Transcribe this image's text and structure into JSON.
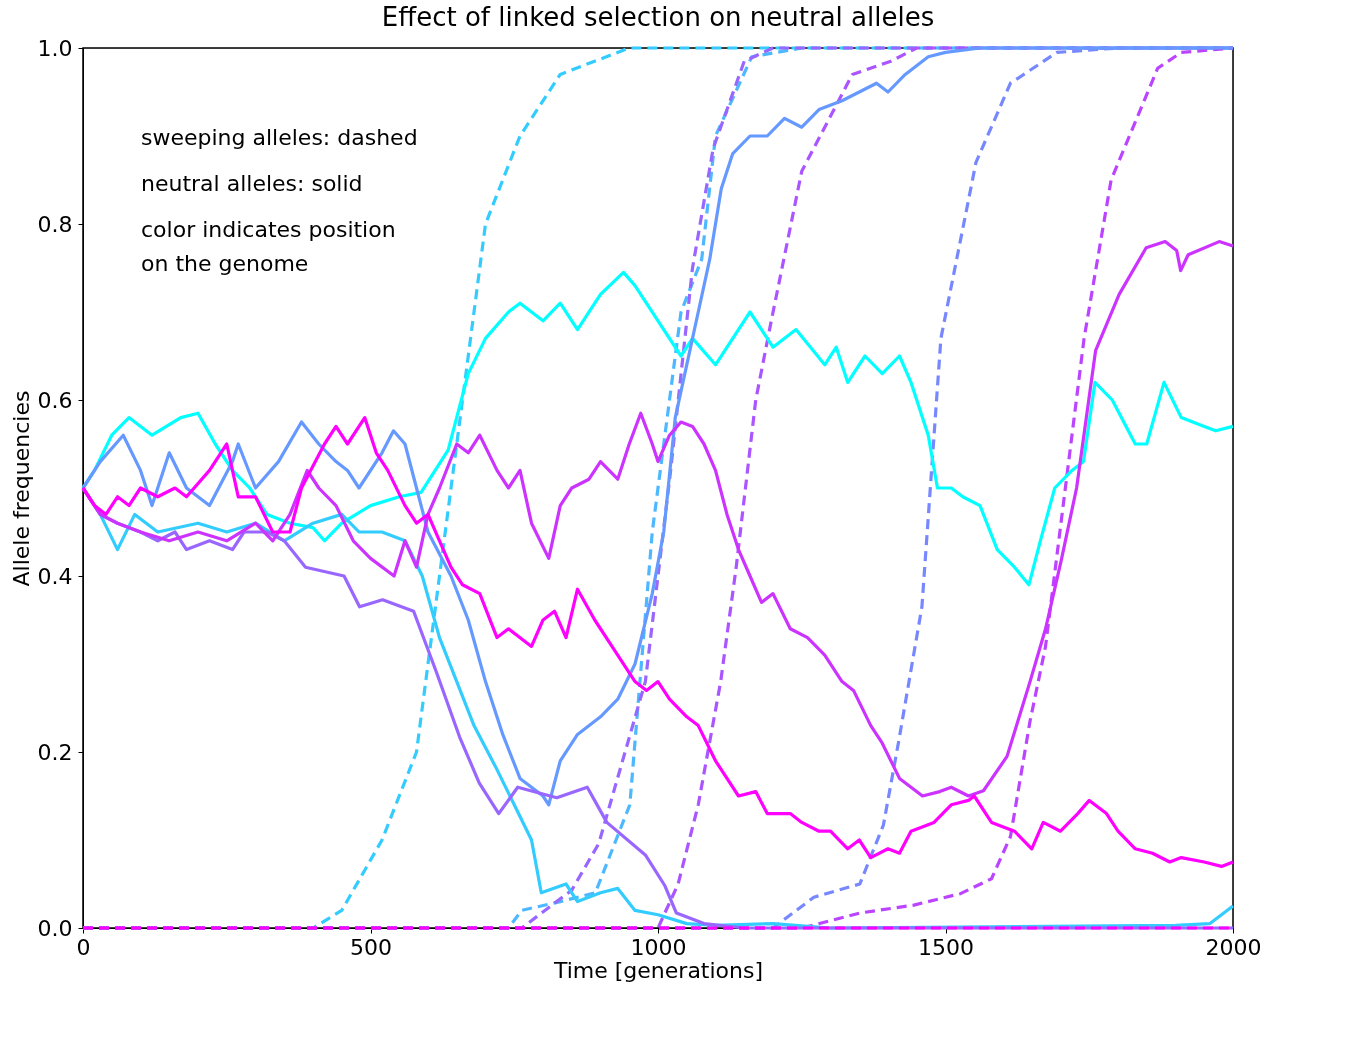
{
  "chart_data": {
    "type": "line",
    "title": "Effect of linked selection on neutral alleles",
    "xlabel": "Time [generations]",
    "ylabel": "Allele frequencies",
    "xlim": [
      0,
      2000
    ],
    "ylim": [
      0,
      1
    ],
    "xticks": [
      0,
      500,
      1000,
      1500,
      2000
    ],
    "yticks": [
      {
        "value": 0,
        "label": "0.0"
      },
      {
        "value": 0.2,
        "label": "0.2"
      },
      {
        "value": 0.4,
        "label": "0.4"
      },
      {
        "value": 0.6,
        "label": "0.6"
      },
      {
        "value": 0.8,
        "label": "0.8"
      },
      {
        "value": 1,
        "label": "1.0"
      }
    ],
    "grid": false,
    "marker": "none",
    "annotations": [
      "sweeping alleles: dashed",
      "neutral alleles: solid",
      "color indicates position\non the genome"
    ],
    "series": [
      {
        "color": "#33ccff",
        "line_style": "dashed",
        "x": [
          0,
          400,
          450,
          520,
          580,
          620,
          660,
          700,
          760,
          830,
          950,
          2000
        ],
        "values": [
          0,
          0,
          0.02,
          0.1,
          0.2,
          0.4,
          0.6,
          0.8,
          0.9,
          0.97,
          1,
          1
        ]
      },
      {
        "color": "#4db8ff",
        "line_style": "dashed",
        "x": [
          0,
          740,
          763,
          830,
          891,
          951,
          990,
          1040,
          1076,
          1100,
          1163,
          1250,
          2000
        ],
        "values": [
          0,
          0,
          0.02,
          0.03,
          0.04,
          0.14,
          0.45,
          0.7,
          0.76,
          0.9,
          0.99,
          1,
          1
        ]
      },
      {
        "color": "#9966ff",
        "line_style": "dashed",
        "x": [
          0,
          763,
          850,
          897,
          978,
          1000,
          1022,
          1060,
          1096,
          1150,
          1200,
          2000
        ],
        "values": [
          0,
          0,
          0.043,
          0.096,
          0.28,
          0.4,
          0.52,
          0.75,
          0.886,
          0.985,
          1,
          1
        ]
      },
      {
        "color": "#aa55ff",
        "line_style": "dashed",
        "x": [
          0,
          1000,
          1035,
          1070,
          1109,
          1136,
          1170,
          1197,
          1250,
          1338,
          1405,
          1450,
          2000
        ],
        "values": [
          0,
          0,
          0.05,
          0.14,
          0.28,
          0.41,
          0.6,
          0.69,
          0.86,
          0.97,
          0.985,
          1,
          1
        ]
      },
      {
        "color": "#7788ff",
        "line_style": "dashed",
        "x": [
          0,
          1200,
          1271,
          1351,
          1392,
          1418,
          1459,
          1492,
          1553,
          1613,
          1694,
          1800,
          2000
        ],
        "values": [
          0,
          0,
          0.035,
          0.05,
          0.117,
          0.21,
          0.365,
          0.67,
          0.87,
          0.96,
          0.995,
          1,
          1
        ]
      },
      {
        "color": "#bb44ff",
        "line_style": "dashed",
        "x": [
          0,
          1250,
          1351,
          1445,
          1526,
          1580,
          1613,
          1647,
          1674,
          1741,
          1788,
          1869,
          1910,
          2000
        ],
        "values": [
          0,
          0,
          0.017,
          0.026,
          0.039,
          0.056,
          0.104,
          0.235,
          0.32,
          0.67,
          0.85,
          0.977,
          0.995,
          1
        ]
      },
      {
        "color": "#00ffff",
        "line_style": "solid",
        "x": [
          0,
          20,
          50,
          80,
          120,
          170,
          200,
          230,
          260,
          290,
          320,
          360,
          400,
          420,
          450,
          500,
          550,
          588,
          635,
          670,
          700,
          740,
          760,
          800,
          830,
          860,
          900,
          940,
          960,
          1000,
          1040,
          1060,
          1100,
          1140,
          1160,
          1200,
          1240,
          1290,
          1310,
          1330,
          1360,
          1390,
          1420,
          1440,
          1470,
          1486,
          1510,
          1530,
          1560,
          1590,
          1620,
          1645,
          1665,
          1690,
          1720,
          1740,
          1760,
          1790,
          1830,
          1850,
          1880,
          1910,
          1950,
          1970,
          2000
        ],
        "values": [
          0.5,
          0.52,
          0.56,
          0.58,
          0.56,
          0.58,
          0.585,
          0.55,
          0.52,
          0.5,
          0.47,
          0.46,
          0.455,
          0.44,
          0.46,
          0.48,
          0.49,
          0.495,
          0.543,
          0.63,
          0.67,
          0.7,
          0.71,
          0.69,
          0.71,
          0.68,
          0.72,
          0.745,
          0.73,
          0.69,
          0.65,
          0.67,
          0.64,
          0.68,
          0.7,
          0.66,
          0.68,
          0.64,
          0.66,
          0.62,
          0.65,
          0.63,
          0.65,
          0.62,
          0.56,
          0.5,
          0.5,
          0.49,
          0.48,
          0.43,
          0.41,
          0.39,
          0.44,
          0.5,
          0.52,
          0.53,
          0.62,
          0.6,
          0.55,
          0.55,
          0.62,
          0.58,
          0.57,
          0.565,
          0.57
        ]
      },
      {
        "color": "#33ccff",
        "line_style": "solid",
        "x": [
          0,
          30,
          60,
          90,
          130,
          200,
          250,
          300,
          350,
          400,
          450,
          480,
          520,
          560,
          590,
          620,
          650,
          680,
          720,
          750,
          780,
          797,
          840,
          860,
          900,
          930,
          960,
          1000,
          1050,
          1100,
          1200,
          1300,
          1900,
          1960,
          2000
        ],
        "values": [
          0.5,
          0.47,
          0.43,
          0.47,
          0.45,
          0.46,
          0.45,
          0.46,
          0.44,
          0.46,
          0.47,
          0.45,
          0.45,
          0.44,
          0.4,
          0.33,
          0.28,
          0.23,
          0.18,
          0.14,
          0.1,
          0.04,
          0.05,
          0.03,
          0.04,
          0.045,
          0.02,
          0.015,
          0.005,
          0.003,
          0.005,
          0,
          0.003,
          0.005,
          0.025
        ]
      },
      {
        "color": "#6699ff",
        "line_style": "solid",
        "x": [
          0,
          30,
          70,
          100,
          120,
          150,
          180,
          220,
          260,
          270,
          300,
          340,
          380,
          410,
          440,
          460,
          480,
          520,
          540,
          560,
          580,
          600,
          640,
          670,
          700,
          730,
          760,
          780,
          800,
          810,
          830,
          860,
          900,
          930,
          960,
          990,
          1010,
          1030,
          1050,
          1070,
          1090,
          1110,
          1130,
          1160,
          1190,
          1220,
          1250,
          1280,
          1320,
          1350,
          1380,
          1400,
          1430,
          1470,
          1500,
          1560,
          2000
        ],
        "values": [
          0.5,
          0.53,
          0.56,
          0.52,
          0.48,
          0.54,
          0.5,
          0.48,
          0.53,
          0.55,
          0.5,
          0.53,
          0.575,
          0.55,
          0.53,
          0.52,
          0.5,
          0.54,
          0.565,
          0.55,
          0.5,
          0.45,
          0.4,
          0.35,
          0.28,
          0.22,
          0.17,
          0.16,
          0.15,
          0.14,
          0.19,
          0.22,
          0.24,
          0.26,
          0.3,
          0.38,
          0.45,
          0.58,
          0.64,
          0.7,
          0.76,
          0.84,
          0.88,
          0.9,
          0.9,
          0.92,
          0.91,
          0.93,
          0.94,
          0.95,
          0.96,
          0.95,
          0.97,
          0.99,
          0.995,
          1,
          1
        ]
      },
      {
        "color": "#9966ff",
        "line_style": "solid",
        "x": [
          0,
          30,
          60,
          100,
          130,
          160,
          180,
          220,
          260,
          280,
          320,
          350,
          387,
          454,
          481,
          521,
          575,
          615,
          655,
          689,
          723,
          756,
          824,
          877,
          911,
          978,
          1012,
          1032,
          1080,
          1150,
          2000
        ],
        "values": [
          0.5,
          0.47,
          0.46,
          0.45,
          0.44,
          0.45,
          0.43,
          0.44,
          0.43,
          0.45,
          0.45,
          0.44,
          0.41,
          0.4,
          0.365,
          0.373,
          0.36,
          0.29,
          0.217,
          0.165,
          0.13,
          0.16,
          0.148,
          0.16,
          0.12,
          0.083,
          0.048,
          0.017,
          0.005,
          0,
          0
        ]
      },
      {
        "color": "#cc33ff",
        "line_style": "solid",
        "x": [
          0,
          30,
          60,
          100,
          150,
          200,
          250,
          300,
          330,
          360,
          390,
          410,
          440,
          470,
          500,
          541,
          560,
          580,
          600,
          620,
          650,
          670,
          690,
          720,
          740,
          760,
          780,
          810,
          830,
          850,
          880,
          900,
          930,
          950,
          970,
          990,
          1000,
          1020,
          1040,
          1060,
          1080,
          1100,
          1120,
          1140,
          1160,
          1180,
          1200,
          1230,
          1260,
          1290,
          1320,
          1340,
          1370,
          1390,
          1420,
          1460,
          1490,
          1510,
          1540,
          1566,
          1607,
          1647,
          1674,
          1701,
          1728,
          1761,
          1802,
          1849,
          1882,
          1902,
          1909,
          1922,
          1976,
          2000
        ],
        "values": [
          0.5,
          0.47,
          0.46,
          0.45,
          0.44,
          0.45,
          0.44,
          0.46,
          0.44,
          0.47,
          0.52,
          0.5,
          0.48,
          0.44,
          0.42,
          0.4,
          0.44,
          0.41,
          0.47,
          0.5,
          0.55,
          0.54,
          0.56,
          0.52,
          0.5,
          0.52,
          0.46,
          0.42,
          0.48,
          0.5,
          0.51,
          0.53,
          0.51,
          0.55,
          0.585,
          0.55,
          0.53,
          0.56,
          0.575,
          0.57,
          0.55,
          0.52,
          0.47,
          0.43,
          0.4,
          0.37,
          0.38,
          0.34,
          0.33,
          0.31,
          0.28,
          0.27,
          0.23,
          0.21,
          0.17,
          0.15,
          0.155,
          0.16,
          0.15,
          0.156,
          0.195,
          0.28,
          0.34,
          0.417,
          0.5,
          0.656,
          0.72,
          0.773,
          0.78,
          0.77,
          0.747,
          0.765,
          0.78,
          0.775
        ]
      },
      {
        "color": "#ff00ff",
        "line_style": "solid",
        "x": [
          0,
          20,
          40,
          60,
          80,
          100,
          130,
          160,
          180,
          220,
          250,
          270,
          300,
          330,
          360,
          380,
          420,
          440,
          460,
          490,
          510,
          530,
          560,
          580,
          600,
          620,
          640,
          660,
          690,
          720,
          740,
          780,
          800,
          820,
          840,
          860,
          890,
          920,
          960,
          980,
          1000,
          1020,
          1050,
          1070,
          1100,
          1120,
          1140,
          1170,
          1190,
          1230,
          1250,
          1280,
          1300,
          1330,
          1350,
          1370,
          1400,
          1420,
          1440,
          1480,
          1510,
          1540,
          1550,
          1580,
          1620,
          1650,
          1670,
          1700,
          1730,
          1750,
          1780,
          1800,
          1830,
          1860,
          1890,
          1910,
          1950,
          1980,
          2000
        ],
        "values": [
          0.5,
          0.48,
          0.47,
          0.49,
          0.48,
          0.5,
          0.49,
          0.5,
          0.49,
          0.52,
          0.55,
          0.49,
          0.49,
          0.45,
          0.45,
          0.5,
          0.55,
          0.57,
          0.55,
          0.58,
          0.54,
          0.52,
          0.48,
          0.46,
          0.47,
          0.44,
          0.41,
          0.39,
          0.38,
          0.33,
          0.34,
          0.32,
          0.35,
          0.36,
          0.33,
          0.385,
          0.35,
          0.32,
          0.28,
          0.27,
          0.28,
          0.26,
          0.24,
          0.23,
          0.19,
          0.17,
          0.15,
          0.155,
          0.13,
          0.13,
          0.12,
          0.11,
          0.11,
          0.09,
          0.1,
          0.08,
          0.09,
          0.085,
          0.11,
          0.12,
          0.14,
          0.145,
          0.15,
          0.12,
          0.11,
          0.09,
          0.12,
          0.11,
          0.13,
          0.145,
          0.13,
          0.11,
          0.09,
          0.085,
          0.075,
          0.08,
          0.075,
          0.07,
          0.075
        ]
      },
      {
        "color": "#ff00ff",
        "line_style": "dashed",
        "x": [
          0,
          2000
        ],
        "values": [
          0,
          0
        ]
      }
    ]
  }
}
